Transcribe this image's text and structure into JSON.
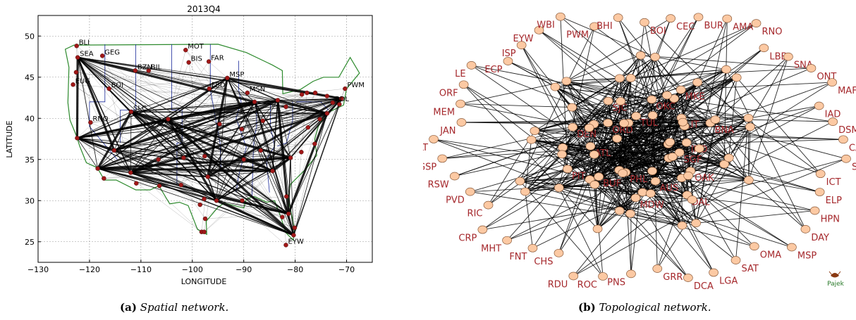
{
  "captions": {
    "a_tag": "(a)",
    "a_text": "Spatial network.",
    "b_tag": "(b)",
    "b_text": "Topological network."
  },
  "chart_data": [
    {
      "type": "scatter",
      "title": "2013Q4",
      "xlabel": "LONGITUDE",
      "ylabel": "LATITUDE",
      "xlim": [
        -130,
        -65
      ],
      "ylim": [
        22.5,
        52.5
      ],
      "xticks": [
        -130,
        -120,
        -110,
        -100,
        -90,
        -80,
        -70
      ],
      "yticks": [
        25,
        30,
        35,
        40,
        45,
        50
      ],
      "grid": true,
      "colors": {
        "node": "#a01818",
        "boundary_state": "#1a2a9a",
        "boundary_border": "#2d8a2d",
        "edge": "#000000"
      },
      "airports": [
        {
          "code": "BLI",
          "lon": -122.5,
          "lat": 48.8
        },
        {
          "code": "SEA",
          "lon": -122.3,
          "lat": 47.4
        },
        {
          "code": "GEG",
          "lon": -117.5,
          "lat": 47.6
        },
        {
          "code": "MOT",
          "lon": -101.3,
          "lat": 48.3
        },
        {
          "code": "BIS",
          "lon": -100.7,
          "lat": 46.8
        },
        {
          "code": "FAR",
          "lon": -96.8,
          "lat": 46.9
        },
        {
          "code": "BZN",
          "lon": -111.1,
          "lat": 45.8
        },
        {
          "code": "BIL",
          "lon": -108.5,
          "lat": 45.8
        },
        {
          "code": "MSP",
          "lon": -93.2,
          "lat": 44.9
        },
        {
          "code": "BOI",
          "lon": -116.2,
          "lat": 43.6
        },
        {
          "code": "FSD",
          "lon": -96.7,
          "lat": 43.6
        },
        {
          "code": "MSN",
          "lon": -89.3,
          "lat": 43.1
        },
        {
          "code": "PDX",
          "lon": -122.6,
          "lat": 45.6
        },
        {
          "code": "EUG",
          "lon": -123.2,
          "lat": 44.1
        },
        {
          "code": "PWM",
          "lon": -70.3,
          "lat": 43.6
        },
        {
          "code": "BDL",
          "lon": -72.7,
          "lat": 41.9
        },
        {
          "code": "SLC",
          "lon": -111.9,
          "lat": 40.8
        },
        {
          "code": "RNO",
          "lon": -119.8,
          "lat": 39.5
        },
        {
          "code": "DEN",
          "lon": -104.7,
          "lat": 39.9
        },
        {
          "code": "SFO",
          "lon": -122.4,
          "lat": 37.6
        },
        {
          "code": "LAX",
          "lon": -118.4,
          "lat": 33.9
        },
        {
          "code": "SAN",
          "lon": -117.2,
          "lat": 32.7
        },
        {
          "code": "PHX",
          "lon": -112.0,
          "lat": 33.4
        },
        {
          "code": "TUS",
          "lon": -110.9,
          "lat": 32.1
        },
        {
          "code": "ABQ",
          "lon": -106.6,
          "lat": 35.0
        },
        {
          "code": "ELP",
          "lon": -106.4,
          "lat": 31.8
        },
        {
          "code": "AMA",
          "lon": -101.7,
          "lat": 35.2
        },
        {
          "code": "MAF",
          "lon": -102.2,
          "lat": 31.9
        },
        {
          "code": "DFW",
          "lon": -97.0,
          "lat": 32.9
        },
        {
          "code": "AUS",
          "lon": -97.7,
          "lat": 30.2
        },
        {
          "code": "SAT",
          "lon": -98.5,
          "lat": 29.5
        },
        {
          "code": "IAH",
          "lon": -95.3,
          "lat": 30.0
        },
        {
          "code": "CRP",
          "lon": -97.5,
          "lat": 27.8
        },
        {
          "code": "MFE",
          "lon": -98.2,
          "lat": 26.2
        },
        {
          "code": "HRL",
          "lon": -97.7,
          "lat": 26.2
        },
        {
          "code": "OKC",
          "lon": -97.6,
          "lat": 35.4
        },
        {
          "code": "MCI",
          "lon": -94.7,
          "lat": 39.3
        },
        {
          "code": "STL",
          "lon": -90.4,
          "lat": 38.7
        },
        {
          "code": "ORD",
          "lon": -87.9,
          "lat": 42.0
        },
        {
          "code": "DTW",
          "lon": -83.4,
          "lat": 42.2
        },
        {
          "code": "MEM",
          "lon": -90.0,
          "lat": 35.0
        },
        {
          "code": "BNA",
          "lon": -86.7,
          "lat": 36.1
        },
        {
          "code": "ATL",
          "lon": -84.4,
          "lat": 33.6
        },
        {
          "code": "MSY",
          "lon": -90.3,
          "lat": 30.0
        },
        {
          "code": "JAX",
          "lon": -81.7,
          "lat": 30.5
        },
        {
          "code": "MCO",
          "lon": -81.3,
          "lat": 28.4
        },
        {
          "code": "TPA",
          "lon": -82.5,
          "lat": 28.0
        },
        {
          "code": "PBI",
          "lon": -80.1,
          "lat": 26.7
        },
        {
          "code": "MIA",
          "lon": -80.3,
          "lat": 25.8
        },
        {
          "code": "EYW",
          "lon": -81.8,
          "lat": 24.6
        },
        {
          "code": "CLT",
          "lon": -80.9,
          "lat": 35.2
        },
        {
          "code": "RDU",
          "lon": -78.8,
          "lat": 35.9
        },
        {
          "code": "IAD",
          "lon": -77.5,
          "lat": 38.9
        },
        {
          "code": "JFK",
          "lon": -73.8,
          "lat": 40.6
        },
        {
          "code": "BOS",
          "lon": -71.0,
          "lat": 42.4
        },
        {
          "code": "PVD",
          "lon": -71.4,
          "lat": 41.7
        },
        {
          "code": "ALB",
          "lon": -73.8,
          "lat": 42.7
        },
        {
          "code": "SYR",
          "lon": -76.1,
          "lat": 43.1
        },
        {
          "code": "ROC",
          "lon": -77.7,
          "lat": 43.1
        },
        {
          "code": "BUF",
          "lon": -78.7,
          "lat": 42.9
        },
        {
          "code": "PHL",
          "lon": -75.2,
          "lat": 39.9
        },
        {
          "code": "CLE",
          "lon": -81.8,
          "lat": 41.4
        },
        {
          "code": "IND",
          "lon": -86.3,
          "lat": 39.7
        },
        {
          "code": "LAS",
          "lon": -115.2,
          "lat": 36.1
        },
        {
          "code": "ORF",
          "lon": -76.2,
          "lat": 36.9
        }
      ],
      "visible_labels": [
        "BLI",
        "SEA",
        "GEG",
        "MOT",
        "BIS",
        "FAR",
        "BZN",
        "BIL",
        "MSP",
        "BOI",
        "FSD",
        "MSN",
        "EUG",
        "PWM",
        "BDL",
        "SLC",
        "RNO",
        "EYW"
      ],
      "hubs": [
        "SFO",
        "LAX",
        "PHX",
        "DEN",
        "DFW",
        "ORD",
        "ATL",
        "JFK",
        "IAH",
        "MSP",
        "SEA",
        "SLC",
        "DTW",
        "MIA",
        "BOS",
        "LAS",
        "CLT",
        "MCO"
      ]
    },
    {
      "type": "network",
      "logo": "Pajek",
      "colors": {
        "node_fill": "#fcc9a3",
        "node_stroke": "#8a5a3a",
        "label": "#a5282c",
        "edge": "#000000"
      },
      "outer_labels": [
        "BOI",
        "CEC",
        "BUR",
        "AMA",
        "RNO",
        "LBB",
        "SNA",
        "ONT",
        "MAF",
        "IAD",
        "DSM",
        "CAK",
        "SFO",
        "ICT",
        "ELP",
        "HPN",
        "DAY",
        "MSP",
        "OMA",
        "SAT",
        "LGA",
        "DCA",
        "GRR",
        "PNS",
        "ROC",
        "RDU",
        "CHS",
        "FNT",
        "MHT",
        "CRP",
        "RIC",
        "PVD",
        "RSW",
        "GSP",
        "CLT",
        "JAN",
        "MEM",
        "ORF",
        "LE",
        "ECP",
        "ISP",
        "EYW",
        "WBI",
        "PWM",
        "BHI"
      ],
      "inner_labels": [
        "SGF",
        "OAK",
        "DAL",
        "AUS",
        "MDW",
        "PHL",
        "BUF",
        "PIT",
        "ATL",
        "DEN",
        "ORD",
        "SJC",
        "TUL",
        "OKC",
        "MKE",
        "LIT",
        "BNA",
        "IND"
      ]
    }
  ]
}
